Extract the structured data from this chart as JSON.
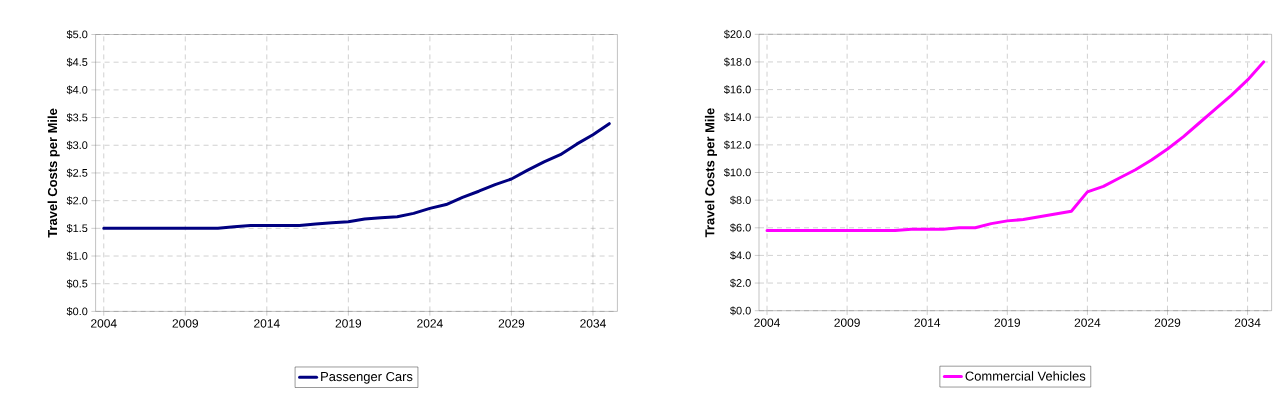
{
  "chart_data": [
    {
      "type": "line",
      "ylabel": "Travel Costs per Mile",
      "x": [
        2004,
        2005,
        2006,
        2007,
        2008,
        2009,
        2010,
        2011,
        2012,
        2013,
        2014,
        2015,
        2016,
        2017,
        2018,
        2019,
        2020,
        2021,
        2022,
        2023,
        2024,
        2025,
        2026,
        2027,
        2028,
        2029,
        2030,
        2031,
        2032,
        2033,
        2034,
        2035
      ],
      "series": [
        {
          "name": "Passenger Cars",
          "color": "#000080",
          "values": [
            1.5,
            1.5,
            1.5,
            1.5,
            1.5,
            1.5,
            1.5,
            1.5,
            1.53,
            1.55,
            1.55,
            1.55,
            1.55,
            1.58,
            1.6,
            1.62,
            1.67,
            1.69,
            1.71,
            1.77,
            1.86,
            1.93,
            2.06,
            2.17,
            2.29,
            2.39,
            2.55,
            2.7,
            2.83,
            3.02,
            3.19,
            3.39
          ]
        }
      ],
      "xlim": [
        2003.5,
        2035.5
      ],
      "xticks": [
        2004,
        2009,
        2014,
        2019,
        2024,
        2029,
        2034
      ],
      "ylim": [
        0,
        5
      ],
      "yticks": [
        {
          "value": 0,
          "label": "$0.0"
        },
        {
          "value": 0.5,
          "label": "$0.5"
        },
        {
          "value": 1,
          "label": "$1.0"
        },
        {
          "value": 1.5,
          "label": "$1.5"
        },
        {
          "value": 2,
          "label": "$2.0"
        },
        {
          "value": 2.5,
          "label": "$2.5"
        },
        {
          "value": 3,
          "label": "$3.0"
        },
        {
          "value": 3.5,
          "label": "$3.5"
        },
        {
          "value": 4,
          "label": "$4.0"
        },
        {
          "value": 4.5,
          "label": "$4.5"
        },
        {
          "value": 5,
          "label": "$5.0"
        }
      ],
      "grid": true,
      "legend": "bottom"
    },
    {
      "type": "line",
      "ylabel": "Travel Costs per Mile",
      "x": [
        2004,
        2005,
        2006,
        2007,
        2008,
        2009,
        2010,
        2011,
        2012,
        2013,
        2014,
        2015,
        2016,
        2017,
        2018,
        2019,
        2020,
        2021,
        2022,
        2023,
        2024,
        2025,
        2026,
        2027,
        2028,
        2029,
        2030,
        2031,
        2032,
        2033,
        2034,
        2035
      ],
      "series": [
        {
          "name": "Commercial Vehicles",
          "color": "#ff00ff",
          "values": [
            5.8,
            5.8,
            5.8,
            5.8,
            5.8,
            5.8,
            5.8,
            5.8,
            5.8,
            5.9,
            5.9,
            5.9,
            6.0,
            6.0,
            6.3,
            6.5,
            6.6,
            6.8,
            7.0,
            7.2,
            8.6,
            9.0,
            9.6,
            10.2,
            10.9,
            11.7,
            12.6,
            13.6,
            14.6,
            15.6,
            16.7,
            18.0
          ]
        }
      ],
      "xlim": [
        2003.5,
        2035.5
      ],
      "xticks": [
        2004,
        2009,
        2014,
        2019,
        2024,
        2029,
        2034
      ],
      "ylim": [
        0,
        20
      ],
      "yticks": [
        {
          "value": 0,
          "label": "$0.0"
        },
        {
          "value": 2,
          "label": "$2.0"
        },
        {
          "value": 4,
          "label": "$4.0"
        },
        {
          "value": 6,
          "label": "$6.0"
        },
        {
          "value": 8,
          "label": "$8.0"
        },
        {
          "value": 10,
          "label": "$10.0"
        },
        {
          "value": 12,
          "label": "$12.0"
        },
        {
          "value": 14,
          "label": "$14.0"
        },
        {
          "value": 16,
          "label": "$16.0"
        },
        {
          "value": 18,
          "label": "$18.0"
        },
        {
          "value": 20,
          "label": "$20.0"
        }
      ],
      "grid": true,
      "legend": "bottom"
    }
  ]
}
